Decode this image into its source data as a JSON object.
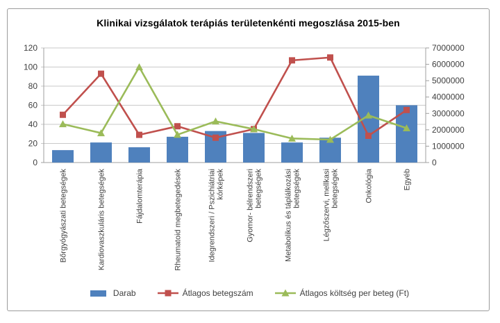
{
  "chart_data": {
    "type": "bar",
    "subtype": "combo-bar-line-dual-axis",
    "title": "Klinikai vizsgálatok terápiás területenkénti megoszlása 2015-ben",
    "categories": [
      "Bőrgyógyászati betegségek",
      "Kardiovaszkuláris betegségek",
      "Fájdalomterápia",
      "Rheumatoid megbetegedések",
      "Idegrendszeri / Pszichiátriai kórképek",
      "Gyomor- bélrendszeri betegségek",
      "Metabolikus és táplálkozási betegségek",
      "Légzőszervi, mellkasi betegségek",
      "Onkológia",
      "Egyéb"
    ],
    "category_label_lines": [
      [
        "Bőrgyógyászati betegségek"
      ],
      [
        "Kardiovaszkuláris betegségek"
      ],
      [
        "Fájdalomterápia"
      ],
      [
        "Rheumatoid megbetegedések"
      ],
      [
        "Idegrendszeri / Pszichiátriai",
        "kórképek"
      ],
      [
        "Gyomor- bélrendszeri",
        "betegségek"
      ],
      [
        "Metabolikus és táplálkozási",
        "betegségek"
      ],
      [
        "Légzőszervi, mellkasi",
        "betegségek"
      ],
      [
        "Onkológia"
      ],
      [
        "Egyéb"
      ]
    ],
    "series": [
      {
        "name": "Darab",
        "type": "bar",
        "axis": "left",
        "color": "#4F81BD",
        "values": [
          13,
          21,
          16,
          27,
          33,
          31,
          21,
          26,
          91,
          60
        ]
      },
      {
        "name": "Átlagos betegszám",
        "type": "line",
        "marker": "square",
        "axis": "left",
        "color": "#C0504D",
        "values": [
          50,
          93,
          29,
          38,
          26,
          35,
          107,
          110,
          28,
          55
        ]
      },
      {
        "name": "Átlagos költség per beteg (Ft)",
        "type": "line",
        "marker": "triangle",
        "axis": "right",
        "color": "#9BBB59",
        "values": [
          2350000,
          1800000,
          5830000,
          1700000,
          2520000,
          2040000,
          1470000,
          1400000,
          2880000,
          2100000
        ]
      }
    ],
    "left_axis": {
      "min": 0,
      "max": 120,
      "step": 20,
      "tick_labels": [
        "0",
        "20",
        "40",
        "60",
        "80",
        "100",
        "120"
      ]
    },
    "right_axis": {
      "min": 0,
      "max": 7000000,
      "step": 1000000,
      "tick_labels": [
        "0",
        "1000000",
        "2000000",
        "3000000",
        "4000000",
        "5000000",
        "6000000",
        "7000000"
      ]
    },
    "grid": true,
    "legend_position": "bottom",
    "colors": {
      "gridline": "#c9c9c9",
      "axis_line": "#9f9f9f",
      "tick_text": "#3f3f3f",
      "title_text": "#000000",
      "background": "#ffffff"
    }
  }
}
